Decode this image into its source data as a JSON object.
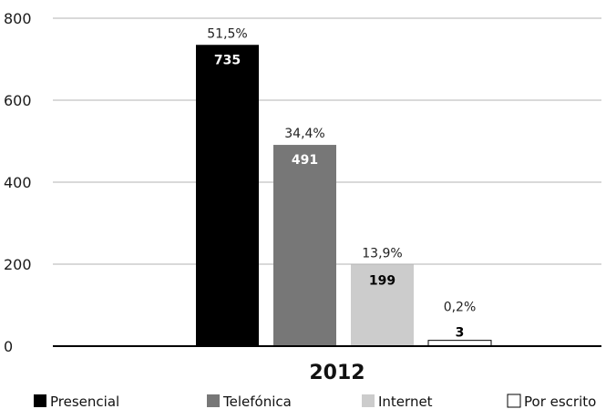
{
  "chart_data": {
    "type": "bar",
    "categories": [
      "2012"
    ],
    "series": [
      {
        "name": "Presencial",
        "values": [
          735
        ],
        "pct_label": "51,5%",
        "color": "#000000"
      },
      {
        "name": "Telefónica",
        "values": [
          491
        ],
        "pct_label": "34,4%",
        "color": "#777777"
      },
      {
        "name": "Internet",
        "values": [
          199
        ],
        "pct_label": "13,9%",
        "color": "#cccccc"
      },
      {
        "name": "Por escrito",
        "values": [
          3
        ],
        "pct_label": "0,2%",
        "color": "#ffffff"
      }
    ],
    "yticks": [
      "0",
      "200",
      "400",
      "600",
      "800"
    ],
    "ylim": [
      0,
      800
    ],
    "grid": true,
    "legend_position": "bottom"
  }
}
